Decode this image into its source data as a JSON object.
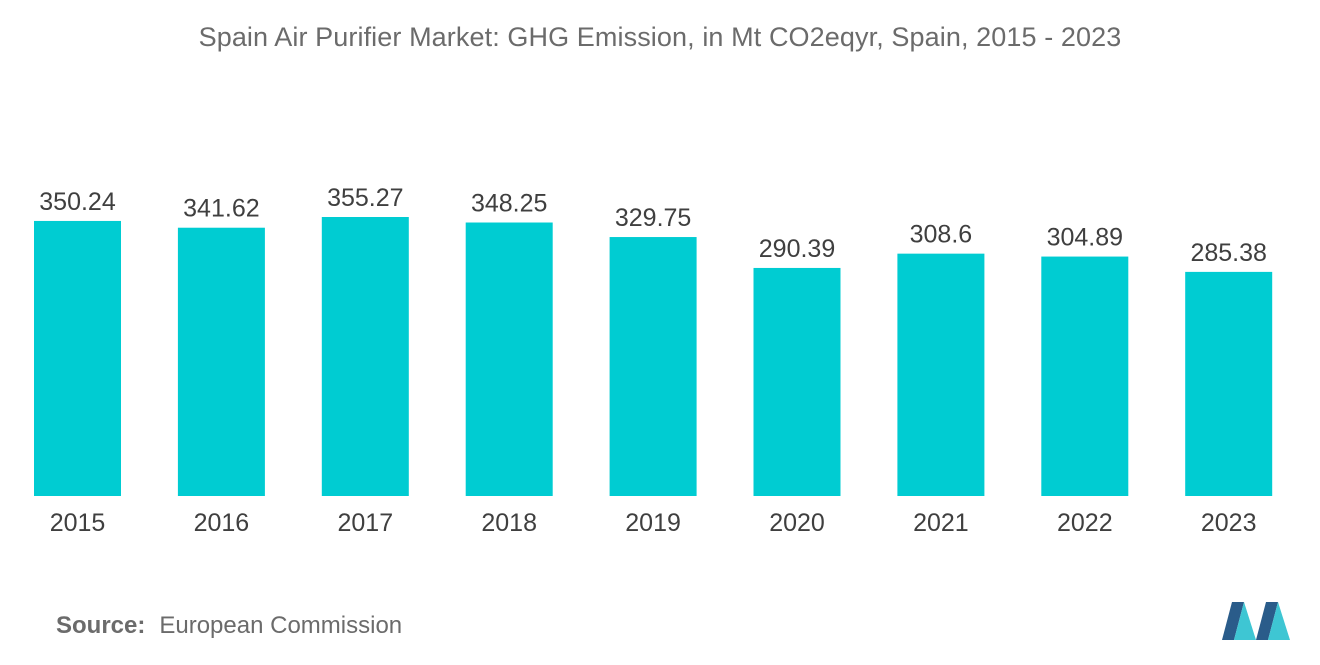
{
  "chart_data": {
    "type": "bar",
    "title": "Spain Air Purifier Market: GHG Emission, in Mt CO2eqyr, Spain, 2015 - 2023",
    "categories": [
      "2015",
      "2016",
      "2017",
      "2018",
      "2019",
      "2020",
      "2021",
      "2022",
      "2023"
    ],
    "values": [
      350.24,
      341.62,
      355.27,
      348.25,
      329.75,
      290.39,
      308.6,
      304.89,
      285.38
    ],
    "value_labels": [
      "350.24",
      "341.62",
      "355.27",
      "348.25",
      "329.75",
      "290.39",
      "308.6",
      "304.89",
      "285.38"
    ],
    "xlabel": "",
    "ylabel": "",
    "ylim": [
      0,
      355.27
    ],
    "grid": false,
    "bar_color": "#00ccd2"
  },
  "source": {
    "label": "Source:",
    "value": "European Commission"
  },
  "colors": {
    "bar": "#00ccd2",
    "logo_dark": "#2a5c8a",
    "logo_light": "#3ec6d3"
  }
}
